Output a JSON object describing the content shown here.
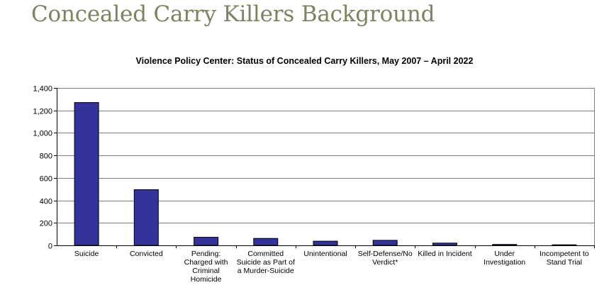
{
  "page": {
    "heading": "Concealed Carry Killers Background"
  },
  "colors": {
    "heading": "#7f8260",
    "bar": "#33339a",
    "grid": "#808080"
  },
  "chart_data": {
    "type": "bar",
    "title": "Violence Policy Center: Status of Concealed Carry Killers, May 2007 – April 2022",
    "xlabel": "",
    "ylabel": "",
    "categories": [
      "Suicide",
      "Convicted",
      "Pending: Charged with Criminal Homicide",
      "Committed Suicide as Part of a Murder-Suicide",
      "Unintentional",
      "Self-Defense/No Verdict*",
      "Killed in Incident",
      "Under Investigation",
      "Incompetent to Stand Trial"
    ],
    "values": [
      1270,
      495,
      72,
      62,
      37,
      45,
      20,
      8,
      5
    ],
    "ylim": [
      0,
      1400
    ],
    "yticks": [
      0,
      200,
      400,
      600,
      800,
      1000,
      1200,
      1400
    ],
    "ytick_labels": [
      "0",
      "200",
      "400",
      "600",
      "800",
      "1,000",
      "1,200",
      "1,400"
    ],
    "grid": true,
    "legend": "none"
  }
}
